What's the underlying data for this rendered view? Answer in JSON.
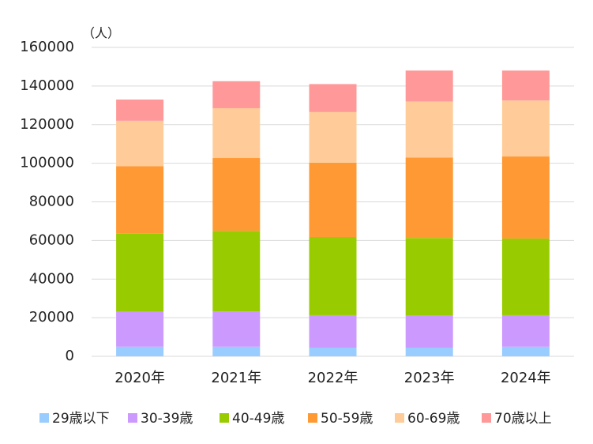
{
  "chart_data": {
    "type": "stacked-bar",
    "unit_label": "（人）",
    "categories": [
      "2020年",
      "2021年",
      "2022年",
      "2023年",
      "2024年"
    ],
    "series": [
      {
        "name": "29歳以下",
        "color": "#99ccff",
        "values": [
          5000,
          5000,
          4500,
          4500,
          5000
        ]
      },
      {
        "name": "30-39歳",
        "color": "#cc99ff",
        "values": [
          18000,
          18300,
          16800,
          16500,
          16300
        ]
      },
      {
        "name": "40-49歳",
        "color": "#99cc00",
        "values": [
          40500,
          41700,
          40500,
          40300,
          39700
        ]
      },
      {
        "name": "50-59歳",
        "color": "#ff9933",
        "values": [
          35000,
          37700,
          38500,
          41700,
          42500
        ]
      },
      {
        "name": "60-69歳",
        "color": "#ffcc99",
        "values": [
          23500,
          25800,
          26200,
          29000,
          29000
        ]
      },
      {
        "name": "70歳以上",
        "color": "#ff9999",
        "values": [
          11000,
          14000,
          14500,
          16000,
          15500
        ]
      }
    ],
    "ylim": [
      0,
      160000
    ],
    "yticks": [
      0,
      20000,
      40000,
      60000,
      80000,
      100000,
      120000,
      140000,
      160000
    ],
    "grid": true,
    "legend": "bottom"
  }
}
